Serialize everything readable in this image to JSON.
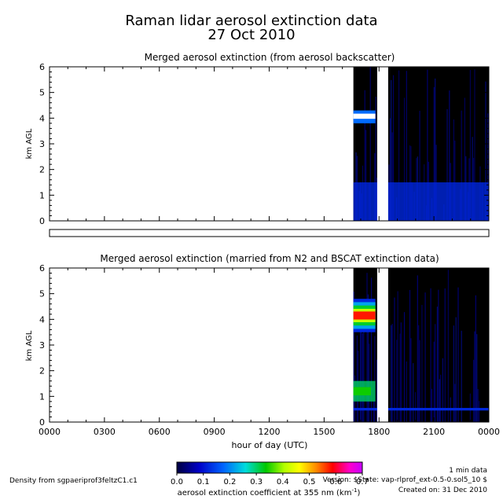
{
  "title_line1": "Raman lidar aerosol extinction data",
  "title_line2": "27 Oct 2010",
  "chart_data": [
    {
      "type": "heatmap",
      "title": "Merged aerosol extinction (from aerosol backscatter)",
      "ylabel": "km AGL",
      "yticks": [
        "0",
        "1",
        "2",
        "3",
        "4",
        "5",
        "6"
      ],
      "ylim": [
        0,
        6
      ],
      "xlim": [
        0,
        24
      ],
      "data_start_hour": 16.6,
      "gap_hours": [
        [
          17.9,
          18.5
        ]
      ],
      "features": [
        {
          "name": "aerosol layer",
          "hours": [
            16.6,
            17.8
          ],
          "km": [
            3.8,
            4.3
          ],
          "value": 0.9
        },
        {
          "name": "boundary layer",
          "hours": [
            16.6,
            24.0
          ],
          "km": [
            0.0,
            1.5
          ],
          "value": 0.12
        }
      ]
    },
    {
      "type": "heatmap",
      "title": "Merged aerosol extinction (married from N2 and BSCAT extinction data)",
      "ylabel": "km AGL",
      "yticks": [
        "0",
        "1",
        "2",
        "3",
        "4",
        "5",
        "6"
      ],
      "ylim": [
        0,
        6
      ],
      "xlim": [
        0,
        24
      ],
      "xlabel": "hour of day (UTC)",
      "xticks": [
        "0000",
        "0300",
        "0600",
        "0900",
        "1200",
        "1500",
        "1800",
        "2100",
        "0000"
      ],
      "data_start_hour": 16.6,
      "gap_hours": [
        [
          17.9,
          18.5
        ]
      ],
      "features": [
        {
          "name": "aerosol layer",
          "hours": [
            16.6,
            17.8
          ],
          "km": [
            3.5,
            4.8
          ],
          "value": 0.5
        },
        {
          "name": "boundary layer",
          "hours": [
            16.6,
            17.8
          ],
          "km": [
            0.8,
            1.6
          ],
          "value": 0.3
        },
        {
          "name": "surface line",
          "hours": [
            16.6,
            24.0
          ],
          "km": [
            0.45,
            0.55
          ],
          "value": 0.12
        }
      ]
    }
  ],
  "colorbar": {
    "ticks": [
      "0.0",
      "0.1",
      "0.2",
      "0.3",
      "0.4",
      "0.5",
      "0.6",
      "0.7"
    ],
    "range": [
      0,
      0.7
    ],
    "label_prefix": "aerosol extinction coefficient at 355 nm (km",
    "label_exp": "-1",
    "label_suffix": ")"
  },
  "footer": {
    "density": "Density from sgpaeriprof3feltzC1.c1",
    "min_data": "1 min data",
    "version": "Version: $State: vap-rlprof_ext-0.5-0.sol5_10 $",
    "created": "Created on: 31 Dec 2010"
  }
}
